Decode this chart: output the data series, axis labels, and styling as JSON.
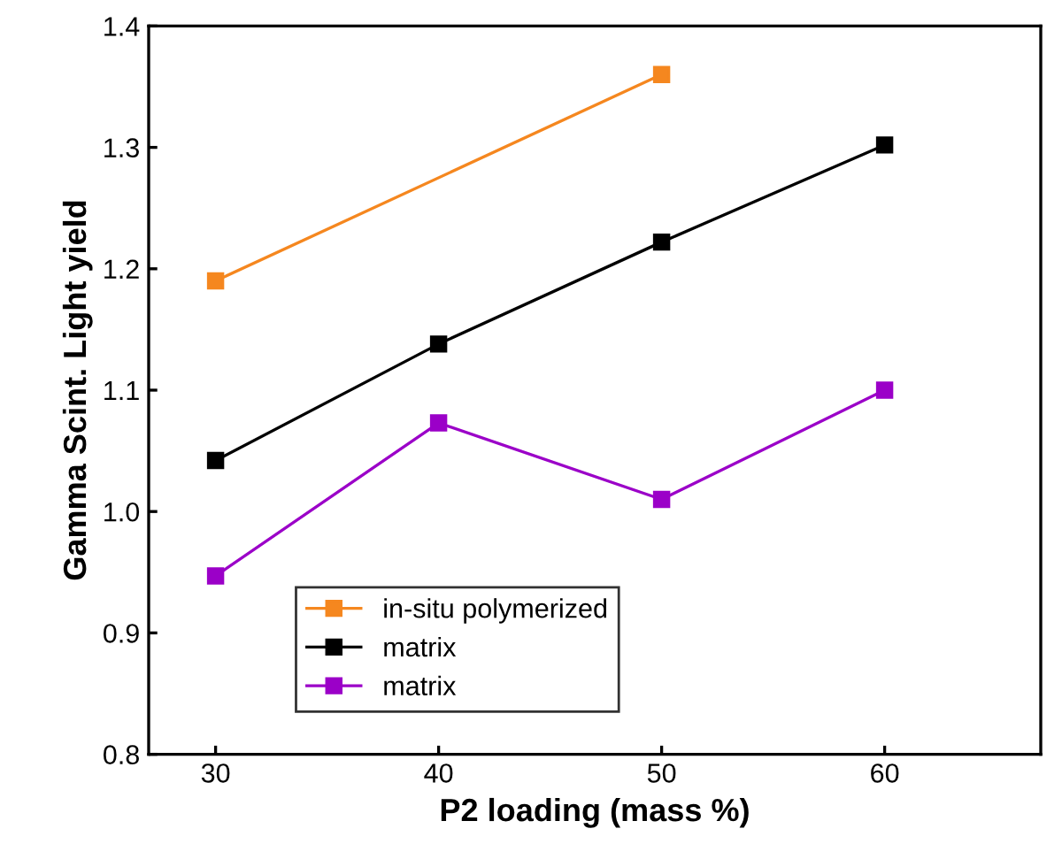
{
  "chart_data": {
    "type": "line",
    "xlabel": "P2 loading (mass %)",
    "ylabel": "Gamma Scint. Light yield",
    "xlim": [
      27,
      67
    ],
    "xticks": [
      30,
      40,
      50,
      60
    ],
    "ylim": [
      0.8,
      1.4
    ],
    "yticks": [
      0.8,
      0.9,
      {
        "value": 1,
        "label": "1.0"
      },
      1.1,
      1.2,
      1.3,
      1.4
    ],
    "marker": "square",
    "legend": "bottom left",
    "grid": false,
    "series": [
      {
        "name": "in-situ polymerized",
        "color": "#f5871f",
        "x": [
          30,
          50
        ],
        "values": [
          1.19,
          1.36
        ]
      },
      {
        "name": "matrix",
        "color": "#000000",
        "x": [
          30,
          40,
          50,
          60
        ],
        "values": [
          1.042,
          1.138,
          1.222,
          1.302
        ]
      },
      {
        "name": "matrix",
        "color": "#9b00c8",
        "x": [
          30,
          40,
          50,
          60
        ],
        "values": [
          0.947,
          1.073,
          1.01,
          1.1
        ]
      }
    ]
  }
}
